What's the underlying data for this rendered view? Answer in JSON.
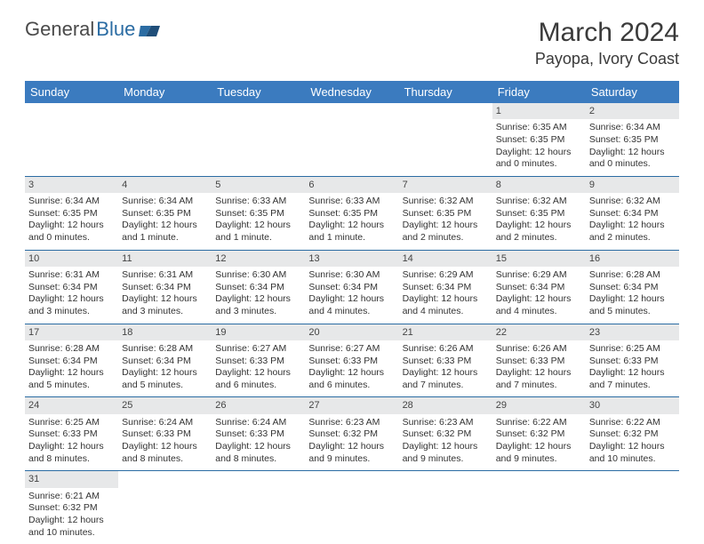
{
  "logo": {
    "part1": "General",
    "part2": "Blue"
  },
  "title": "March 2024",
  "location": "Payopa, Ivory Coast",
  "colors": {
    "header_bg": "#3b7bbf",
    "header_text": "#ffffff",
    "daynum_bg": "#e7e8e9",
    "rule": "#2b6ca3",
    "logo_accent": "#2b6ca3",
    "body_text": "#333333"
  },
  "weekdays": [
    "Sunday",
    "Monday",
    "Tuesday",
    "Wednesday",
    "Thursday",
    "Friday",
    "Saturday"
  ],
  "weeks": [
    [
      null,
      null,
      null,
      null,
      null,
      {
        "n": "1",
        "sr": "Sunrise: 6:35 AM",
        "ss": "Sunset: 6:35 PM",
        "d1": "Daylight: 12 hours",
        "d2": "and 0 minutes."
      },
      {
        "n": "2",
        "sr": "Sunrise: 6:34 AM",
        "ss": "Sunset: 6:35 PM",
        "d1": "Daylight: 12 hours",
        "d2": "and 0 minutes."
      }
    ],
    [
      {
        "n": "3",
        "sr": "Sunrise: 6:34 AM",
        "ss": "Sunset: 6:35 PM",
        "d1": "Daylight: 12 hours",
        "d2": "and 0 minutes."
      },
      {
        "n": "4",
        "sr": "Sunrise: 6:34 AM",
        "ss": "Sunset: 6:35 PM",
        "d1": "Daylight: 12 hours",
        "d2": "and 1 minute."
      },
      {
        "n": "5",
        "sr": "Sunrise: 6:33 AM",
        "ss": "Sunset: 6:35 PM",
        "d1": "Daylight: 12 hours",
        "d2": "and 1 minute."
      },
      {
        "n": "6",
        "sr": "Sunrise: 6:33 AM",
        "ss": "Sunset: 6:35 PM",
        "d1": "Daylight: 12 hours",
        "d2": "and 1 minute."
      },
      {
        "n": "7",
        "sr": "Sunrise: 6:32 AM",
        "ss": "Sunset: 6:35 PM",
        "d1": "Daylight: 12 hours",
        "d2": "and 2 minutes."
      },
      {
        "n": "8",
        "sr": "Sunrise: 6:32 AM",
        "ss": "Sunset: 6:35 PM",
        "d1": "Daylight: 12 hours",
        "d2": "and 2 minutes."
      },
      {
        "n": "9",
        "sr": "Sunrise: 6:32 AM",
        "ss": "Sunset: 6:34 PM",
        "d1": "Daylight: 12 hours",
        "d2": "and 2 minutes."
      }
    ],
    [
      {
        "n": "10",
        "sr": "Sunrise: 6:31 AM",
        "ss": "Sunset: 6:34 PM",
        "d1": "Daylight: 12 hours",
        "d2": "and 3 minutes."
      },
      {
        "n": "11",
        "sr": "Sunrise: 6:31 AM",
        "ss": "Sunset: 6:34 PM",
        "d1": "Daylight: 12 hours",
        "d2": "and 3 minutes."
      },
      {
        "n": "12",
        "sr": "Sunrise: 6:30 AM",
        "ss": "Sunset: 6:34 PM",
        "d1": "Daylight: 12 hours",
        "d2": "and 3 minutes."
      },
      {
        "n": "13",
        "sr": "Sunrise: 6:30 AM",
        "ss": "Sunset: 6:34 PM",
        "d1": "Daylight: 12 hours",
        "d2": "and 4 minutes."
      },
      {
        "n": "14",
        "sr": "Sunrise: 6:29 AM",
        "ss": "Sunset: 6:34 PM",
        "d1": "Daylight: 12 hours",
        "d2": "and 4 minutes."
      },
      {
        "n": "15",
        "sr": "Sunrise: 6:29 AM",
        "ss": "Sunset: 6:34 PM",
        "d1": "Daylight: 12 hours",
        "d2": "and 4 minutes."
      },
      {
        "n": "16",
        "sr": "Sunrise: 6:28 AM",
        "ss": "Sunset: 6:34 PM",
        "d1": "Daylight: 12 hours",
        "d2": "and 5 minutes."
      }
    ],
    [
      {
        "n": "17",
        "sr": "Sunrise: 6:28 AM",
        "ss": "Sunset: 6:34 PM",
        "d1": "Daylight: 12 hours",
        "d2": "and 5 minutes."
      },
      {
        "n": "18",
        "sr": "Sunrise: 6:28 AM",
        "ss": "Sunset: 6:34 PM",
        "d1": "Daylight: 12 hours",
        "d2": "and 5 minutes."
      },
      {
        "n": "19",
        "sr": "Sunrise: 6:27 AM",
        "ss": "Sunset: 6:33 PM",
        "d1": "Daylight: 12 hours",
        "d2": "and 6 minutes."
      },
      {
        "n": "20",
        "sr": "Sunrise: 6:27 AM",
        "ss": "Sunset: 6:33 PM",
        "d1": "Daylight: 12 hours",
        "d2": "and 6 minutes."
      },
      {
        "n": "21",
        "sr": "Sunrise: 6:26 AM",
        "ss": "Sunset: 6:33 PM",
        "d1": "Daylight: 12 hours",
        "d2": "and 7 minutes."
      },
      {
        "n": "22",
        "sr": "Sunrise: 6:26 AM",
        "ss": "Sunset: 6:33 PM",
        "d1": "Daylight: 12 hours",
        "d2": "and 7 minutes."
      },
      {
        "n": "23",
        "sr": "Sunrise: 6:25 AM",
        "ss": "Sunset: 6:33 PM",
        "d1": "Daylight: 12 hours",
        "d2": "and 7 minutes."
      }
    ],
    [
      {
        "n": "24",
        "sr": "Sunrise: 6:25 AM",
        "ss": "Sunset: 6:33 PM",
        "d1": "Daylight: 12 hours",
        "d2": "and 8 minutes."
      },
      {
        "n": "25",
        "sr": "Sunrise: 6:24 AM",
        "ss": "Sunset: 6:33 PM",
        "d1": "Daylight: 12 hours",
        "d2": "and 8 minutes."
      },
      {
        "n": "26",
        "sr": "Sunrise: 6:24 AM",
        "ss": "Sunset: 6:33 PM",
        "d1": "Daylight: 12 hours",
        "d2": "and 8 minutes."
      },
      {
        "n": "27",
        "sr": "Sunrise: 6:23 AM",
        "ss": "Sunset: 6:32 PM",
        "d1": "Daylight: 12 hours",
        "d2": "and 9 minutes."
      },
      {
        "n": "28",
        "sr": "Sunrise: 6:23 AM",
        "ss": "Sunset: 6:32 PM",
        "d1": "Daylight: 12 hours",
        "d2": "and 9 minutes."
      },
      {
        "n": "29",
        "sr": "Sunrise: 6:22 AM",
        "ss": "Sunset: 6:32 PM",
        "d1": "Daylight: 12 hours",
        "d2": "and 9 minutes."
      },
      {
        "n": "30",
        "sr": "Sunrise: 6:22 AM",
        "ss": "Sunset: 6:32 PM",
        "d1": "Daylight: 12 hours",
        "d2": "and 10 minutes."
      }
    ],
    [
      {
        "n": "31",
        "sr": "Sunrise: 6:21 AM",
        "ss": "Sunset: 6:32 PM",
        "d1": "Daylight: 12 hours",
        "d2": "and 10 minutes."
      },
      null,
      null,
      null,
      null,
      null,
      null
    ]
  ]
}
